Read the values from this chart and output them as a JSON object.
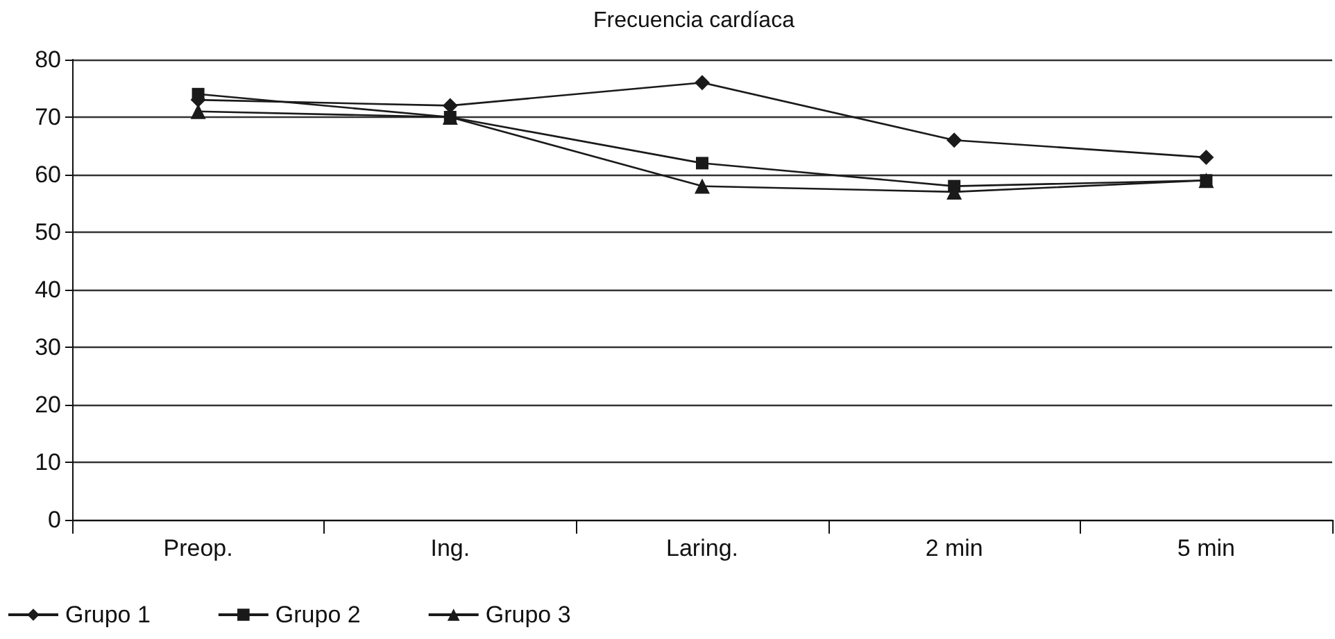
{
  "chart_data": {
    "type": "line",
    "title": "Frecuencia cardíaca",
    "categories": [
      "Preop.",
      "Ing.",
      "Laring.",
      "2 min",
      "5 min"
    ],
    "series": [
      {
        "name": "Grupo 1",
        "color": "#1a1a1a",
        "marker": "diamond",
        "values": [
          73,
          72,
          76,
          66,
          63
        ]
      },
      {
        "name": "Grupo 2",
        "color": "#1a1a1a",
        "marker": "square",
        "values": [
          74,
          70,
          62,
          58,
          59
        ]
      },
      {
        "name": "Grupo 3",
        "color": "#1a1a1a",
        "marker": "triangle",
        "values": [
          71,
          70,
          58,
          57,
          59
        ]
      }
    ],
    "ylim": [
      0,
      80
    ],
    "yticks": [
      0,
      10,
      20,
      30,
      40,
      50,
      60,
      70,
      80
    ],
    "grid": "y",
    "legend": "bottom left"
  }
}
